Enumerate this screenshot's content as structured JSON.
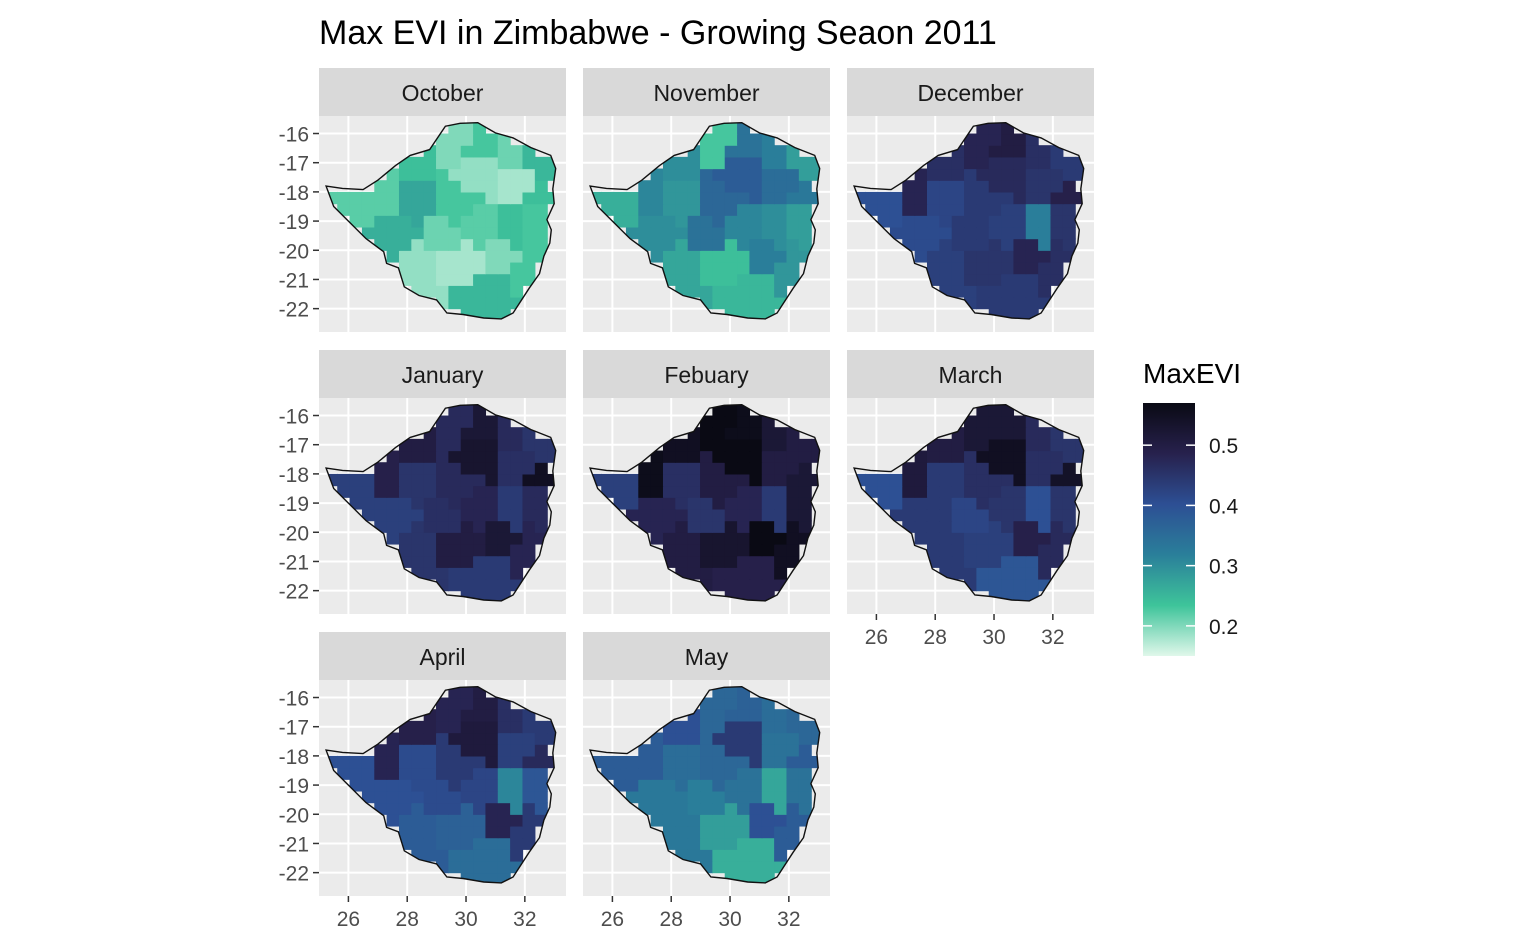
{
  "chart_data": {
    "type": "heatmap",
    "subtype": "faceted choropleth map",
    "title": "Max EVI in Zimbabwe - Growing Seaon 2011",
    "xlabel": "",
    "ylabel": "",
    "x_ticks": [
      "26",
      "28",
      "30",
      "32"
    ],
    "y_ticks": [
      "-16",
      "-17",
      "-18",
      "-19",
      "-20",
      "-21",
      "-22"
    ],
    "xlim": [
      25,
      33.4
    ],
    "ylim": [
      -22.8,
      -15.4
    ],
    "grid": true,
    "facets": [
      "October",
      "November",
      "December",
      "January",
      "Febuary",
      "March",
      "April",
      "May"
    ],
    "legend": {
      "title": "MaxEVI",
      "position": "right",
      "range": [
        0.15,
        0.57
      ],
      "breaks": [
        "0.5",
        "0.4",
        "0.3",
        "0.2"
      ],
      "colors": [
        "#e0f7ea",
        "#3ec49a",
        "#2a7f9a",
        "#2d4f94",
        "#27214d",
        "#0a0a14"
      ]
    },
    "facet_values": {
      "October": [
        0.22,
        0.24,
        0.2,
        0.23,
        0.21,
        0.25,
        0.22,
        0.19,
        0.18,
        0.24,
        0.27,
        0.23,
        0.26,
        0.21,
        0.22,
        0.24,
        0.23,
        0.19,
        0.18,
        0.25,
        0.2,
        0.23
      ],
      "November": [
        0.26,
        0.3,
        0.23,
        0.34,
        0.32,
        0.28,
        0.31,
        0.38,
        0.35,
        0.33,
        0.29,
        0.36,
        0.3,
        0.34,
        0.31,
        0.3,
        0.28,
        0.27,
        0.24,
        0.25,
        0.32,
        0.29
      ],
      "December": [
        0.4,
        0.46,
        0.48,
        0.5,
        0.46,
        0.44,
        0.48,
        0.47,
        0.45,
        0.49,
        0.42,
        0.44,
        0.41,
        0.44,
        0.43,
        0.32,
        0.45,
        0.43,
        0.45,
        0.44,
        0.48,
        0.46
      ],
      "January": [
        0.43,
        0.5,
        0.47,
        0.52,
        0.47,
        0.45,
        0.49,
        0.53,
        0.46,
        0.55,
        0.45,
        0.47,
        0.43,
        0.46,
        0.48,
        0.44,
        0.47,
        0.45,
        0.5,
        0.44,
        0.52,
        0.48
      ],
      "Febuary": [
        0.43,
        0.55,
        0.57,
        0.56,
        0.52,
        0.5,
        0.56,
        0.57,
        0.5,
        0.52,
        0.46,
        0.5,
        0.48,
        0.45,
        0.48,
        0.44,
        0.52,
        0.5,
        0.53,
        0.49,
        0.57,
        0.55
      ],
      "March": [
        0.4,
        0.5,
        0.52,
        0.52,
        0.47,
        0.45,
        0.51,
        0.55,
        0.46,
        0.54,
        0.44,
        0.46,
        0.44,
        0.42,
        0.45,
        0.4,
        0.45,
        0.44,
        0.43,
        0.39,
        0.49,
        0.47
      ],
      "April": [
        0.4,
        0.49,
        0.48,
        0.5,
        0.46,
        0.44,
        0.48,
        0.51,
        0.43,
        0.47,
        0.41,
        0.44,
        0.4,
        0.41,
        0.42,
        0.31,
        0.39,
        0.38,
        0.37,
        0.35,
        0.48,
        0.44
      ],
      "May": [
        0.38,
        0.4,
        0.36,
        0.37,
        0.35,
        0.36,
        0.38,
        0.44,
        0.34,
        0.38,
        0.35,
        0.36,
        0.33,
        0.32,
        0.34,
        0.27,
        0.34,
        0.33,
        0.28,
        0.26,
        0.4,
        0.38
      ]
    }
  }
}
